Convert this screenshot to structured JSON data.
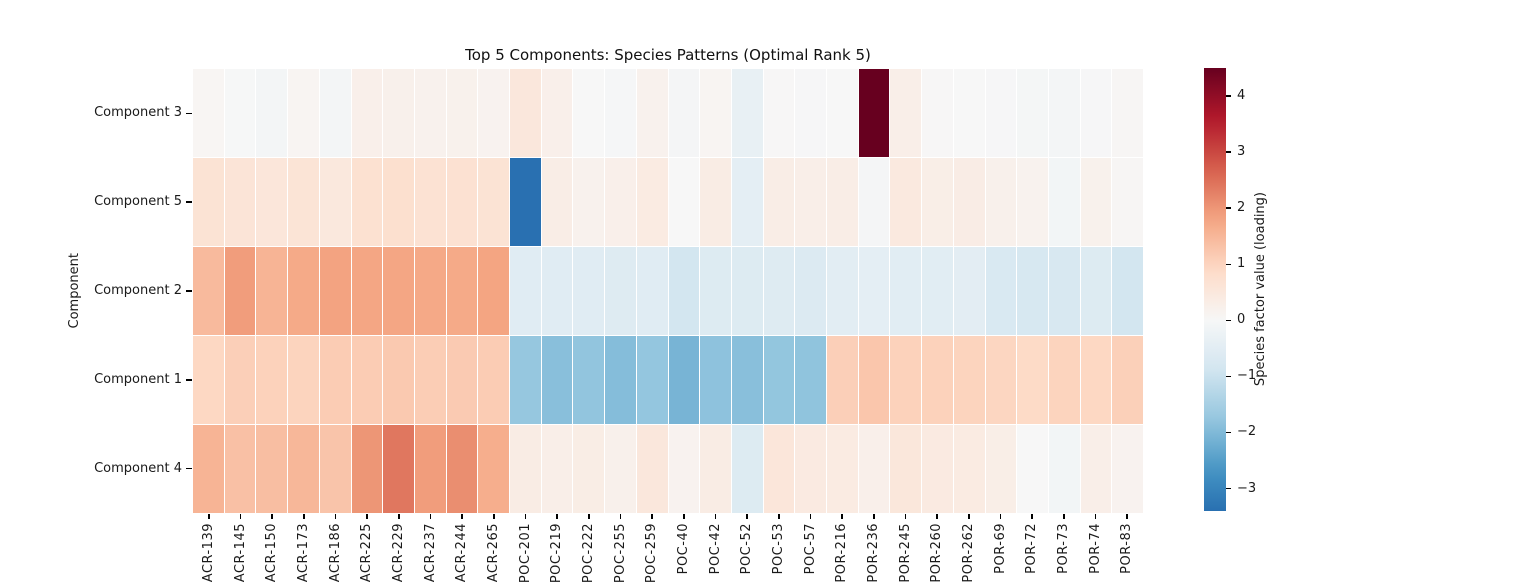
{
  "chart_data": {
    "type": "heatmap",
    "title": "Top 5 Components: Species Patterns (Optimal Rank 5)",
    "xlabel": "",
    "ylabel": "Component",
    "colorbar_label": "Species factor value (loading)",
    "colormap": "RdBu_r",
    "center": 0,
    "vmin": -3.4,
    "vmax": 4.5,
    "colormap_stops": [
      "#053061",
      "#2166ac",
      "#4393c3",
      "#92c5de",
      "#d1e5f0",
      "#f7f7f7",
      "#fddbc7",
      "#f4a582",
      "#d6604d",
      "#b2182b",
      "#67001f"
    ],
    "colorbar_ticks": [
      4,
      3,
      2,
      1,
      0,
      -1,
      -2,
      -3
    ],
    "colorbar_tick_labels": [
      "4",
      "3",
      "2",
      "1",
      "0",
      "−1",
      "−2",
      "−3"
    ],
    "grid_lines": "white",
    "columns": [
      "ACR-139",
      "ACR-145",
      "ACR-150",
      "ACR-173",
      "ACR-186",
      "ACR-225",
      "ACR-229",
      "ACR-237",
      "ACR-244",
      "ACR-265",
      "POC-201",
      "POC-219",
      "POC-222",
      "POC-255",
      "POC-259",
      "POC-40",
      "POC-42",
      "POC-52",
      "POC-53",
      "POC-57",
      "POR-216",
      "POR-236",
      "POR-245",
      "POR-260",
      "POR-262",
      "POR-69",
      "POR-72",
      "POR-73",
      "POR-74",
      "POR-83"
    ],
    "rows": [
      "Component 3",
      "Component 5",
      "Component 2",
      "Component 1",
      "Component 4"
    ],
    "values": [
      [
        0.08,
        -0.02,
        -0.1,
        0.1,
        -0.1,
        0.25,
        0.22,
        0.18,
        0.2,
        0.15,
        0.5,
        0.25,
        0.0,
        -0.05,
        0.18,
        -0.08,
        0.1,
        -0.35,
        0.02,
        -0.03,
        0.0,
        4.5,
        0.28,
        0.02,
        0.0,
        -0.03,
        -0.07,
        -0.1,
        -0.03,
        0.05
      ],
      [
        0.65,
        0.6,
        0.55,
        0.62,
        0.48,
        0.72,
        0.75,
        0.68,
        0.7,
        0.65,
        -3.4,
        0.32,
        0.18,
        0.25,
        0.4,
        0.0,
        0.35,
        -0.45,
        0.32,
        0.28,
        0.32,
        -0.08,
        0.45,
        0.3,
        0.34,
        0.22,
        0.17,
        -0.12,
        0.2,
        0.06
      ],
      [
        1.45,
        1.9,
        1.55,
        1.72,
        1.82,
        1.78,
        1.78,
        1.74,
        1.72,
        1.8,
        -0.55,
        -0.55,
        -0.55,
        -0.6,
        -0.55,
        -0.85,
        -0.62,
        -0.62,
        -0.6,
        -0.63,
        -0.5,
        -0.45,
        -0.52,
        -0.52,
        -0.48,
        -0.7,
        -0.75,
        -0.73,
        -0.62,
        -0.85
      ],
      [
        0.95,
        1.1,
        1.05,
        1.02,
        1.15,
        1.15,
        1.2,
        1.13,
        1.18,
        1.15,
        -1.75,
        -1.9,
        -1.8,
        -1.95,
        -1.77,
        -2.1,
        -1.85,
        -1.9,
        -1.78,
        -1.82,
        1.1,
        1.25,
        1.05,
        1.05,
        1.02,
        0.98,
        0.9,
        1.02,
        0.95,
        1.08
      ],
      [
        1.55,
        1.35,
        1.38,
        1.5,
        1.28,
        2.0,
        2.4,
        1.9,
        2.1,
        1.65,
        0.35,
        0.28,
        0.33,
        0.22,
        0.5,
        0.15,
        0.35,
        -0.62,
        0.55,
        0.42,
        0.4,
        0.25,
        0.52,
        0.42,
        0.4,
        0.3,
        0.0,
        -0.12,
        0.28,
        0.15
      ]
    ]
  }
}
